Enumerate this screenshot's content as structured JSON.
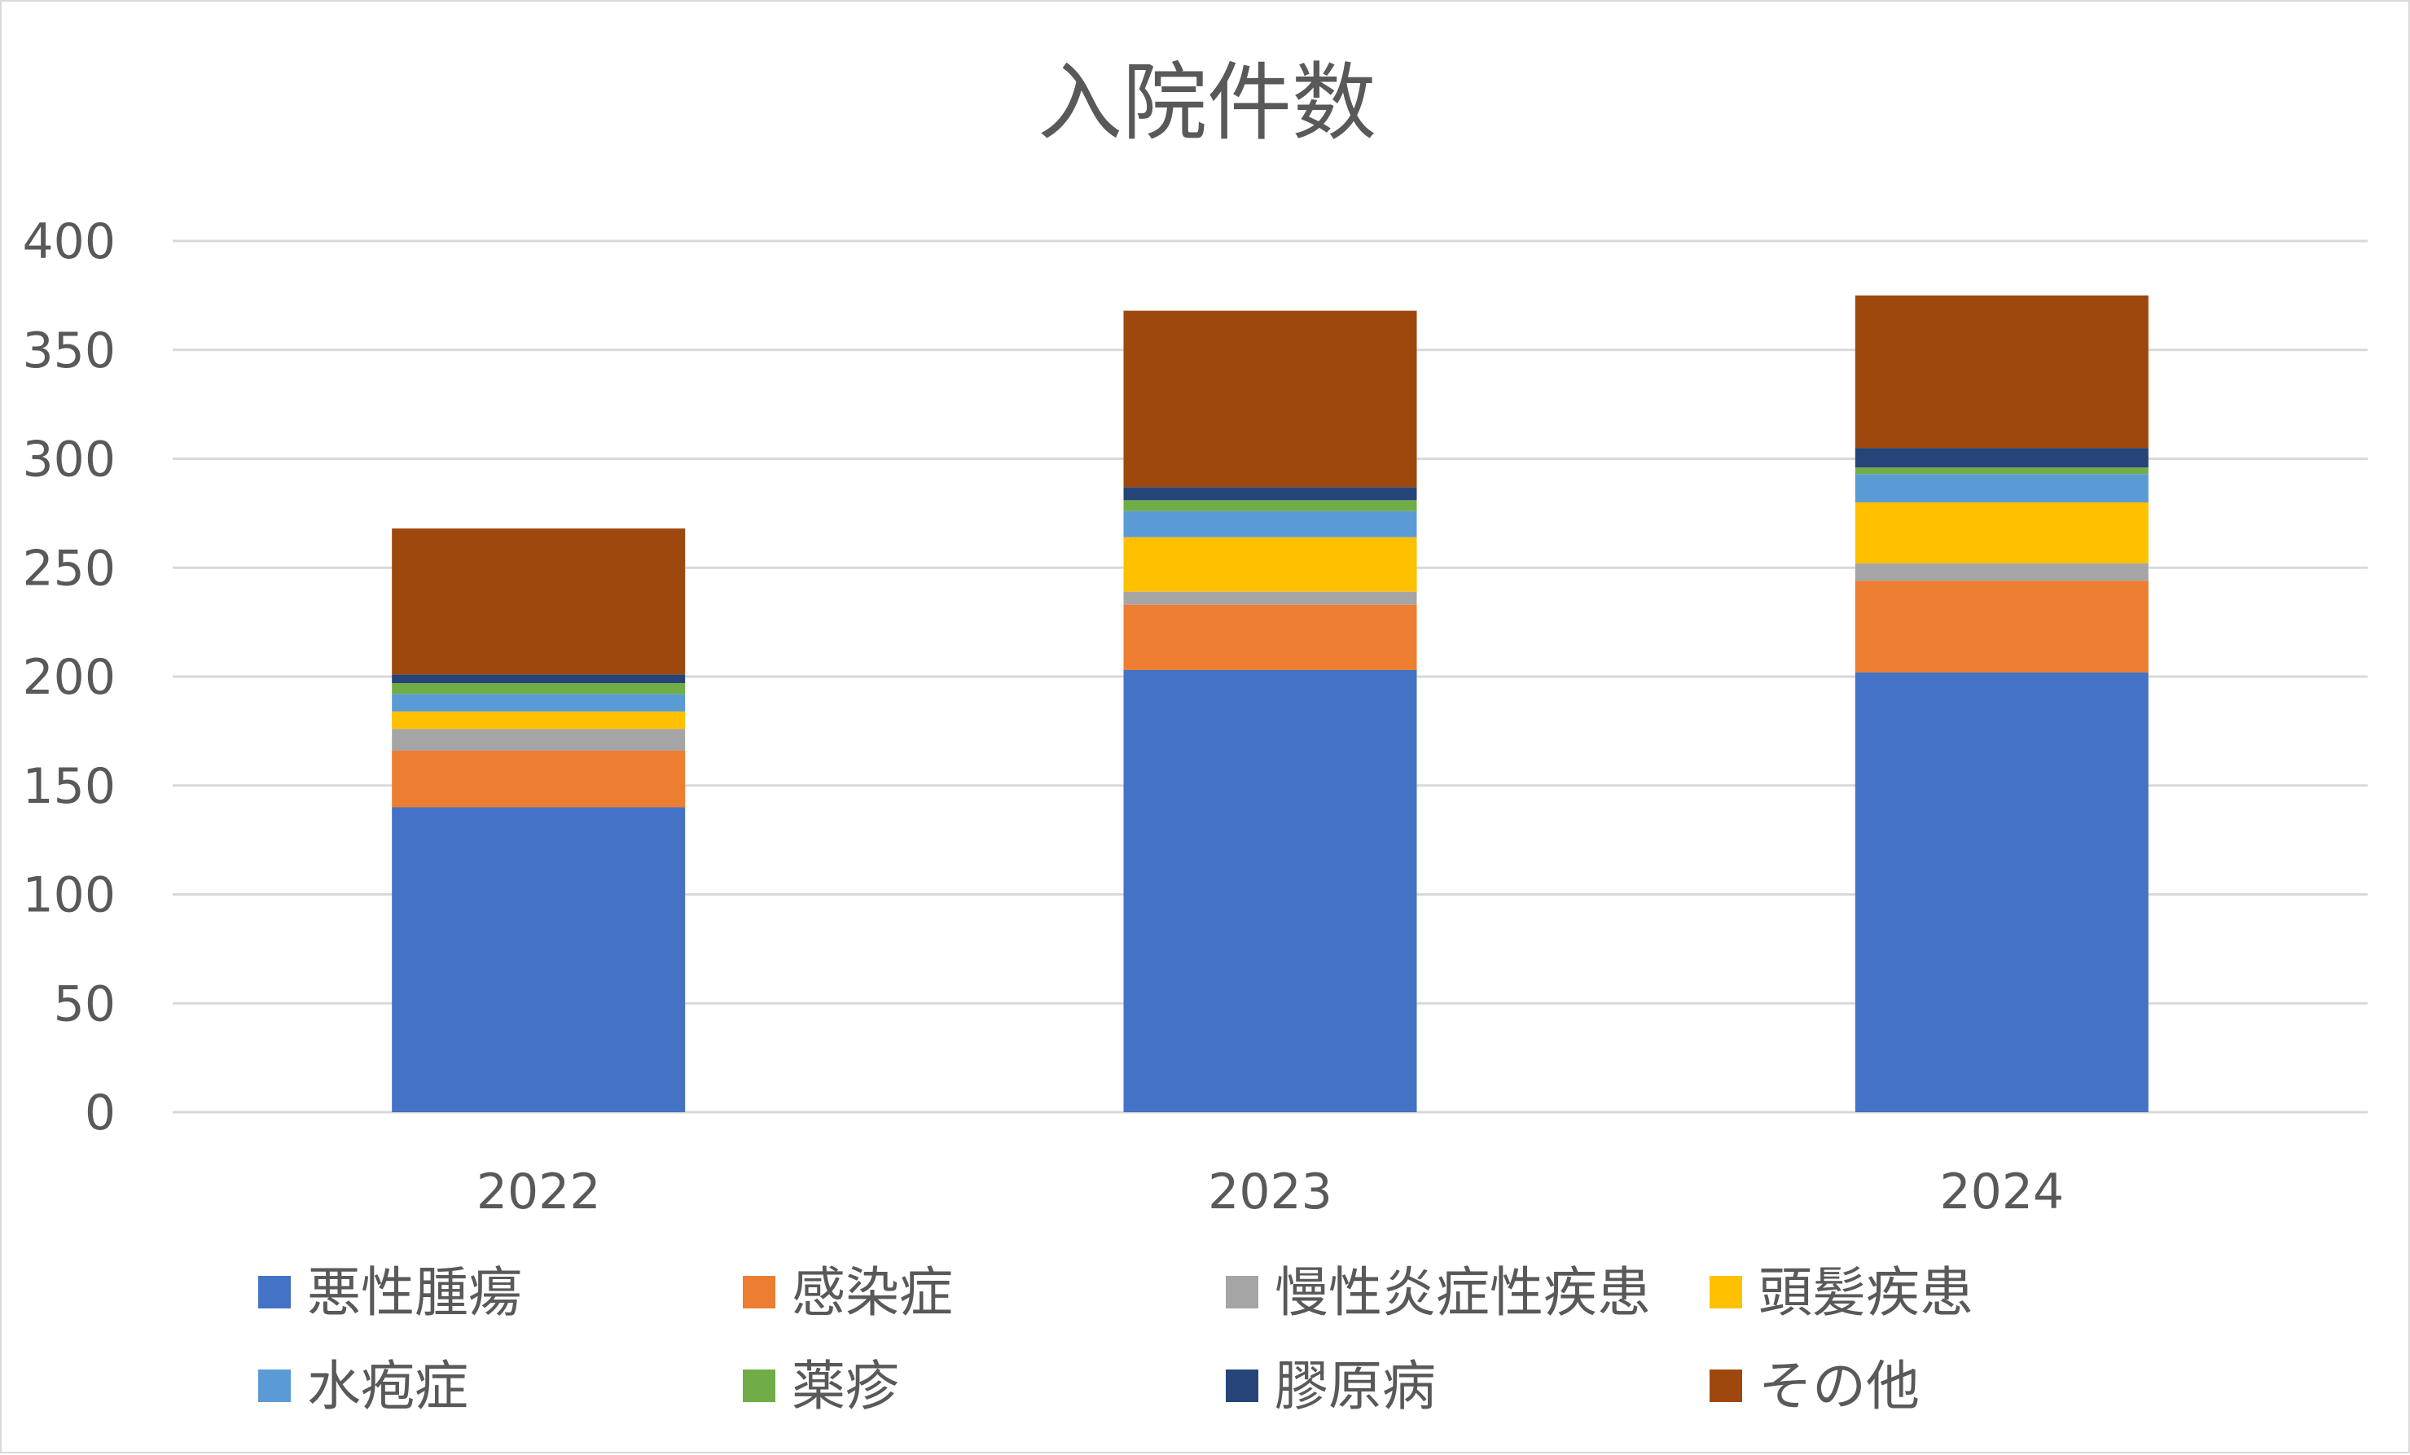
{
  "chart_data": {
    "type": "bar",
    "stacked": true,
    "title": "入院件数",
    "xlabel": "",
    "ylabel": "",
    "categories": [
      "2022",
      "2023",
      "2024"
    ],
    "ylim": [
      0,
      400
    ],
    "yticks": [
      0,
      50,
      100,
      150,
      200,
      250,
      300,
      350,
      400
    ],
    "grid": true,
    "legend_position": "bottom",
    "series": [
      {
        "name": "悪性腫瘍",
        "color": "#4472c4",
        "values": [
          140,
          203,
          202
        ]
      },
      {
        "name": "感染症",
        "color": "#ed7d31",
        "values": [
          26,
          30,
          42
        ]
      },
      {
        "name": "慢性炎症性疾患",
        "color": "#a5a5a5",
        "values": [
          10,
          6,
          8
        ]
      },
      {
        "name": "頭髪疾患",
        "color": "#ffc000",
        "values": [
          8,
          25,
          28
        ]
      },
      {
        "name": "水疱症",
        "color": "#5b9bd5",
        "values": [
          8,
          12,
          13
        ]
      },
      {
        "name": "薬疹",
        "color": "#70ad47",
        "values": [
          5,
          5,
          3
        ]
      },
      {
        "name": "膠原病",
        "color": "#264478",
        "values": [
          4,
          6,
          9
        ]
      },
      {
        "name": "その他",
        "color": "#9e480e",
        "values": [
          67,
          81,
          70
        ]
      }
    ]
  }
}
